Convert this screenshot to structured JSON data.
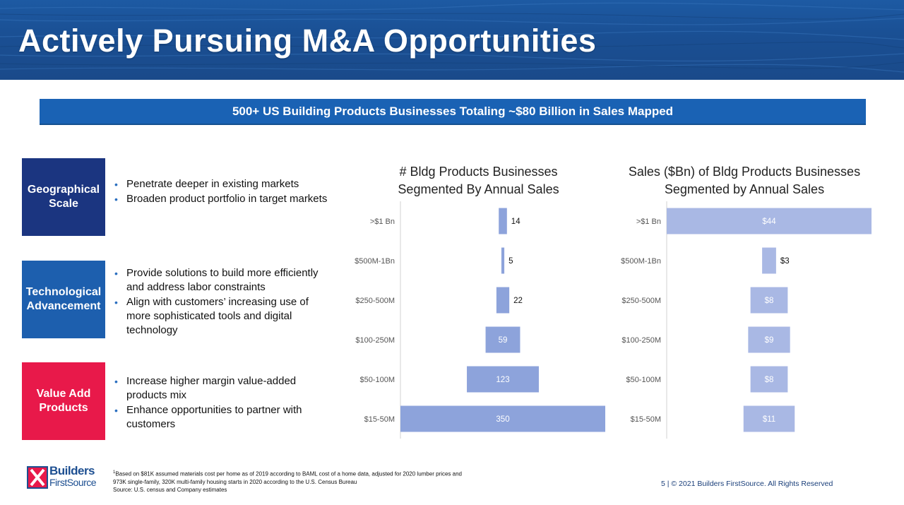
{
  "header": {
    "title": "Actively Pursuing M&A Opportunities"
  },
  "banner": {
    "text": "500+ US Building Products Businesses Totaling ~$80 Billion in Sales Mapped"
  },
  "pillars": [
    {
      "label_line1": "Geographical",
      "label_line2": "Scale",
      "color": "#1b3580",
      "bullets": [
        "Penetrate deeper in existing markets",
        "Broaden product portfolio in target markets"
      ]
    },
    {
      "label_line1": "Technological",
      "label_line2": "Advancement",
      "color": "#1d5fae",
      "bullets": [
        "Provide solutions to build more efficiently and address labor constraints",
        "Align with customers’ increasing use of more sophisticated tools and digital technology"
      ]
    },
    {
      "label_line1": "Value Add",
      "label_line2": "Products",
      "color": "#e8194a",
      "bullets": [
        "Increase higher margin value-added products mix",
        "Enhance opportunities to partner with customers"
      ]
    }
  ],
  "chart_data": [
    {
      "type": "bar",
      "orientation": "horizontal-funnel",
      "title_line1": "# Bldg Products Businesses",
      "title_line2": "Segmented By Annual Sales",
      "categories": [
        ">$1 Bn",
        "$500M-1Bn",
        "$250-500M",
        "$100-250M",
        "$50-100M",
        "$15-50M"
      ],
      "values": [
        14,
        5,
        22,
        59,
        123,
        350
      ],
      "data_labels": [
        "14",
        "5",
        "22",
        "59",
        "123",
        "350"
      ],
      "bar_color": "#8da3db"
    },
    {
      "type": "bar",
      "orientation": "horizontal-funnel",
      "title_line1": "Sales ($Bn) of Bldg Products Businesses",
      "title_line2": "Segmented by Annual Sales",
      "categories": [
        ">$1 Bn",
        "$500M-1Bn",
        "$250-500M",
        "$100-250M",
        "$50-100M",
        "$15-50M"
      ],
      "values": [
        44,
        3,
        8,
        9,
        8,
        11
      ],
      "data_labels": [
        "$44",
        "$3",
        "$8",
        "$9",
        "$8",
        "$11"
      ],
      "bar_color": "#a9b8e4"
    }
  ],
  "footer": {
    "footnote_marker": "1",
    "footnote_line1": "Based on $81K assumed materials cost per home as of 2019 according to BAML cost of a home data, adjusted for 2020 lumber prices and",
    "footnote_line2": "973K single-family, 320K multi-family housing starts in 2020 according to the U.S. Census Bureau",
    "source": "Source:  U.S. census and Company estimates",
    "copyright": "5  |  © 2021 Builders FirstSource. All Rights Reserved",
    "logo_line1": "Builders",
    "logo_line2": "FirstSource"
  }
}
